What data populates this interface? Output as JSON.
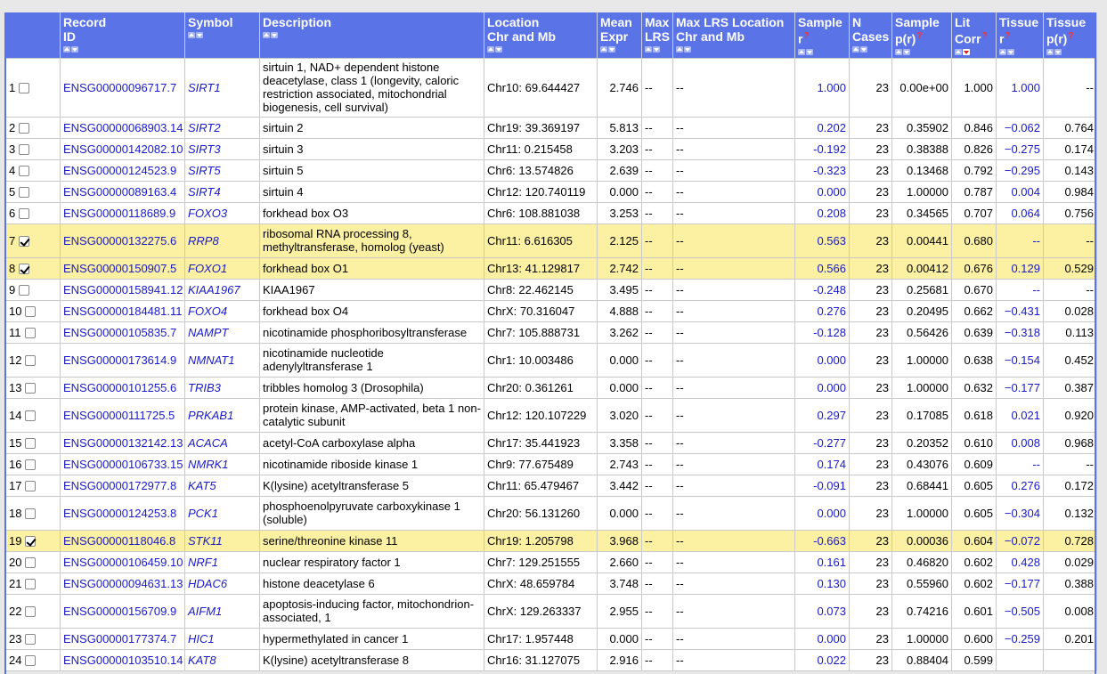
{
  "columns": [
    {
      "label": "",
      "sub": "",
      "q": false,
      "sort": false
    },
    {
      "label": "Record",
      "sub": "ID",
      "q": false,
      "sort": true
    },
    {
      "label": "Symbol",
      "sub": "",
      "q": false,
      "sort": true
    },
    {
      "label": "Description",
      "sub": "",
      "q": false,
      "sort": true
    },
    {
      "label": "Location",
      "sub": "Chr and Mb",
      "q": false,
      "sort": true
    },
    {
      "label": "Mean",
      "sub": "Expr",
      "q": false,
      "sort": true
    },
    {
      "label": "Max",
      "sub": "LRS",
      "q": false,
      "sort": true
    },
    {
      "label": "Max LRS Location",
      "sub": "Chr and Mb",
      "q": false,
      "sort": true
    },
    {
      "label": "Sample",
      "sub": "r",
      "q": true,
      "sort": true
    },
    {
      "label": "N",
      "sub": "Cases",
      "q": false,
      "sort": true
    },
    {
      "label": "Sample",
      "sub": "p(r)",
      "q": true,
      "sort": true
    },
    {
      "label": "Lit",
      "sub": "Corr",
      "q": true,
      "sort": true,
      "active": true
    },
    {
      "label": "Tissue",
      "sub": "r",
      "q": true,
      "sort": true
    },
    {
      "label": "Tissue",
      "sub": "p(r)",
      "q": true,
      "sort": true
    }
  ],
  "rows": [
    {
      "n": "1",
      "checked": false,
      "id": "ENSG00000096717.7",
      "sym": "SIRT1",
      "desc": "sirtuin 1, NAD+ dependent histone deacetylase, class 1 (longevity, caloric restriction associated, mitochondrial biogenesis, cell survival)",
      "loc": "Chr10: 69.644427",
      "mean": "2.746",
      "lrs": "--",
      "lrsloc": "--",
      "sr": "1.000",
      "ncases": "23",
      "sp": "0.00e+00",
      "lit": "1.000",
      "tr": "1.000",
      "tp": "--",
      "h": "xtall"
    },
    {
      "n": "2",
      "checked": false,
      "id": "ENSG00000068903.14",
      "sym": "SIRT2",
      "desc": "sirtuin 2",
      "loc": "Chr19: 39.369197",
      "mean": "5.813",
      "lrs": "--",
      "lrsloc": "--",
      "sr": "0.202",
      "ncases": "23",
      "sp": "0.35902",
      "lit": "0.846",
      "tr": "−0.062",
      "tp": "0.764",
      "h": ""
    },
    {
      "n": "3",
      "checked": false,
      "id": "ENSG00000142082.10",
      "sym": "SIRT3",
      "desc": "sirtuin 3",
      "loc": "Chr11: 0.215458",
      "mean": "3.203",
      "lrs": "--",
      "lrsloc": "--",
      "sr": "-0.192",
      "ncases": "23",
      "sp": "0.38388",
      "lit": "0.826",
      "tr": "−0.275",
      "tp": "0.174",
      "h": ""
    },
    {
      "n": "4",
      "checked": false,
      "id": "ENSG00000124523.9",
      "sym": "SIRT5",
      "desc": "sirtuin 5",
      "loc": "Chr6: 13.574826",
      "mean": "2.639",
      "lrs": "--",
      "lrsloc": "--",
      "sr": "-0.323",
      "ncases": "23",
      "sp": "0.13468",
      "lit": "0.792",
      "tr": "−0.295",
      "tp": "0.143",
      "h": ""
    },
    {
      "n": "5",
      "checked": false,
      "id": "ENSG00000089163.4",
      "sym": "SIRT4",
      "desc": "sirtuin 4",
      "loc": "Chr12: 120.740119",
      "mean": "0.000",
      "lrs": "--",
      "lrsloc": "--",
      "sr": "0.000",
      "ncases": "23",
      "sp": "1.00000",
      "lit": "0.787",
      "tr": "0.004",
      "tp": "0.984",
      "h": ""
    },
    {
      "n": "6",
      "checked": false,
      "id": "ENSG00000118689.9",
      "sym": "FOXO3",
      "desc": "forkhead box O3",
      "loc": "Chr6: 108.881038",
      "mean": "3.253",
      "lrs": "--",
      "lrsloc": "--",
      "sr": "0.208",
      "ncases": "23",
      "sp": "0.34565",
      "lit": "0.707",
      "tr": "0.064",
      "tp": "0.756",
      "h": ""
    },
    {
      "n": "7",
      "checked": true,
      "id": "ENSG00000132275.6",
      "sym": "RRP8",
      "desc": "ribosomal RNA processing 8, methyltransferase, homolog (yeast)",
      "loc": "Chr11: 6.616305",
      "mean": "2.125",
      "lrs": "--",
      "lrsloc": "--",
      "sr": "0.563",
      "ncases": "23",
      "sp": "0.00441",
      "lit": "0.680",
      "tr": "--",
      "tp": "--",
      "h": "tall"
    },
    {
      "n": "8",
      "checked": true,
      "id": "ENSG00000150907.5",
      "sym": "FOXO1",
      "desc": "forkhead box O1",
      "loc": "Chr13: 41.129817",
      "mean": "2.742",
      "lrs": "--",
      "lrsloc": "--",
      "sr": "0.566",
      "ncases": "23",
      "sp": "0.00412",
      "lit": "0.676",
      "tr": "0.129",
      "tp": "0.529",
      "h": ""
    },
    {
      "n": "9",
      "checked": false,
      "id": "ENSG00000158941.12",
      "sym": "KIAA1967",
      "desc": "KIAA1967",
      "loc": "Chr8: 22.462145",
      "mean": "3.495",
      "lrs": "--",
      "lrsloc": "--",
      "sr": "-0.248",
      "ncases": "23",
      "sp": "0.25681",
      "lit": "0.670",
      "tr": "--",
      "tp": "--",
      "h": ""
    },
    {
      "n": "10",
      "checked": false,
      "id": "ENSG00000184481.11",
      "sym": "FOXO4",
      "desc": "forkhead box O4",
      "loc": "ChrX: 70.316047",
      "mean": "4.888",
      "lrs": "--",
      "lrsloc": "--",
      "sr": "0.276",
      "ncases": "23",
      "sp": "0.20495",
      "lit": "0.662",
      "tr": "−0.431",
      "tp": "0.028",
      "h": ""
    },
    {
      "n": "11",
      "checked": false,
      "id": "ENSG00000105835.7",
      "sym": "NAMPT",
      "desc": "nicotinamide phosphoribosyltransferase",
      "loc": "Chr7: 105.888731",
      "mean": "3.262",
      "lrs": "--",
      "lrsloc": "--",
      "sr": "-0.128",
      "ncases": "23",
      "sp": "0.56426",
      "lit": "0.639",
      "tr": "−0.318",
      "tp": "0.113",
      "h": ""
    },
    {
      "n": "12",
      "checked": false,
      "id": "ENSG00000173614.9",
      "sym": "NMNAT1",
      "desc": "nicotinamide nucleotide adenylyltransferase 1",
      "loc": "Chr1: 10.003486",
      "mean": "0.000",
      "lrs": "--",
      "lrsloc": "--",
      "sr": "0.000",
      "ncases": "23",
      "sp": "1.00000",
      "lit": "0.638",
      "tr": "−0.154",
      "tp": "0.452",
      "h": "tall"
    },
    {
      "n": "13",
      "checked": false,
      "id": "ENSG00000101255.6",
      "sym": "TRIB3",
      "desc": "tribbles homolog 3 (Drosophila)",
      "loc": "Chr20: 0.361261",
      "mean": "0.000",
      "lrs": "--",
      "lrsloc": "--",
      "sr": "0.000",
      "ncases": "23",
      "sp": "1.00000",
      "lit": "0.632",
      "tr": "−0.177",
      "tp": "0.387",
      "h": ""
    },
    {
      "n": "14",
      "checked": false,
      "id": "ENSG00000111725.5",
      "sym": "PRKAB1",
      "desc": "protein kinase, AMP-activated, beta 1 non-catalytic subunit",
      "loc": "Chr12: 120.107229",
      "mean": "3.020",
      "lrs": "--",
      "lrsloc": "--",
      "sr": "0.297",
      "ncases": "23",
      "sp": "0.17085",
      "lit": "0.618",
      "tr": "0.021",
      "tp": "0.920",
      "h": "tall"
    },
    {
      "n": "15",
      "checked": false,
      "id": "ENSG00000132142.13",
      "sym": "ACACA",
      "desc": "acetyl-CoA carboxylase alpha",
      "loc": "Chr17: 35.441923",
      "mean": "3.358",
      "lrs": "--",
      "lrsloc": "--",
      "sr": "-0.277",
      "ncases": "23",
      "sp": "0.20352",
      "lit": "0.610",
      "tr": "0.008",
      "tp": "0.968",
      "h": ""
    },
    {
      "n": "16",
      "checked": false,
      "id": "ENSG00000106733.15",
      "sym": "NMRK1",
      "desc": "nicotinamide riboside kinase 1",
      "loc": "Chr9: 77.675489",
      "mean": "2.743",
      "lrs": "--",
      "lrsloc": "--",
      "sr": "0.174",
      "ncases": "23",
      "sp": "0.43076",
      "lit": "0.609",
      "tr": "--",
      "tp": "--",
      "h": ""
    },
    {
      "n": "17",
      "checked": false,
      "id": "ENSG00000172977.8",
      "sym": "KAT5",
      "desc": "K(lysine) acetyltransferase 5",
      "loc": "Chr11: 65.479467",
      "mean": "3.442",
      "lrs": "--",
      "lrsloc": "--",
      "sr": "-0.091",
      "ncases": "23",
      "sp": "0.68441",
      "lit": "0.605",
      "tr": "0.276",
      "tp": "0.172",
      "h": ""
    },
    {
      "n": "18",
      "checked": false,
      "id": "ENSG00000124253.8",
      "sym": "PCK1",
      "desc": "phosphoenolpyruvate carboxykinase 1 (soluble)",
      "loc": "Chr20: 56.131260",
      "mean": "0.000",
      "lrs": "--",
      "lrsloc": "--",
      "sr": "0.000",
      "ncases": "23",
      "sp": "1.00000",
      "lit": "0.605",
      "tr": "−0.304",
      "tp": "0.132",
      "h": "tall"
    },
    {
      "n": "19",
      "checked": true,
      "id": "ENSG00000118046.8",
      "sym": "STK11",
      "desc": "serine/threonine kinase 11",
      "loc": "Chr19: 1.205798",
      "mean": "3.968",
      "lrs": "--",
      "lrsloc": "--",
      "sr": "-0.663",
      "ncases": "23",
      "sp": "0.00036",
      "lit": "0.604",
      "tr": "−0.072",
      "tp": "0.728",
      "h": ""
    },
    {
      "n": "20",
      "checked": false,
      "id": "ENSG00000106459.10",
      "sym": "NRF1",
      "desc": "nuclear respiratory factor 1",
      "loc": "Chr7: 129.251555",
      "mean": "2.660",
      "lrs": "--",
      "lrsloc": "--",
      "sr": "0.161",
      "ncases": "23",
      "sp": "0.46820",
      "lit": "0.602",
      "tr": "0.428",
      "tp": "0.029",
      "h": ""
    },
    {
      "n": "21",
      "checked": false,
      "id": "ENSG00000094631.13",
      "sym": "HDAC6",
      "desc": "histone deacetylase 6",
      "loc": "ChrX: 48.659784",
      "mean": "3.748",
      "lrs": "--",
      "lrsloc": "--",
      "sr": "0.130",
      "ncases": "23",
      "sp": "0.55960",
      "lit": "0.602",
      "tr": "−0.177",
      "tp": "0.388",
      "h": ""
    },
    {
      "n": "22",
      "checked": false,
      "id": "ENSG00000156709.9",
      "sym": "AIFM1",
      "desc": "apoptosis-inducing factor, mitochondrion-associated, 1",
      "loc": "ChrX: 129.263337",
      "mean": "2.955",
      "lrs": "--",
      "lrsloc": "--",
      "sr": "0.073",
      "ncases": "23",
      "sp": "0.74216",
      "lit": "0.601",
      "tr": "−0.505",
      "tp": "0.008",
      "h": "tall"
    },
    {
      "n": "23",
      "checked": false,
      "id": "ENSG00000177374.7",
      "sym": "HIC1",
      "desc": "hypermethylated in cancer 1",
      "loc": "Chr17: 1.957448",
      "mean": "0.000",
      "lrs": "--",
      "lrsloc": "--",
      "sr": "0.000",
      "ncases": "23",
      "sp": "1.00000",
      "lit": "0.600",
      "tr": "−0.259",
      "tp": "0.201",
      "h": ""
    },
    {
      "n": "24",
      "checked": false,
      "id": "ENSG00000103510.14",
      "sym": "KAT8",
      "desc": "K(lysine) acetyltransferase 8",
      "loc": "Chr16: 31.127075",
      "mean": "2.916",
      "lrs": "--",
      "lrsloc": "--",
      "sr": "0.022",
      "ncases": "23",
      "sp": "0.88404",
      "lit": "0.599",
      "tr": "",
      "tp": "",
      "h": ""
    }
  ]
}
